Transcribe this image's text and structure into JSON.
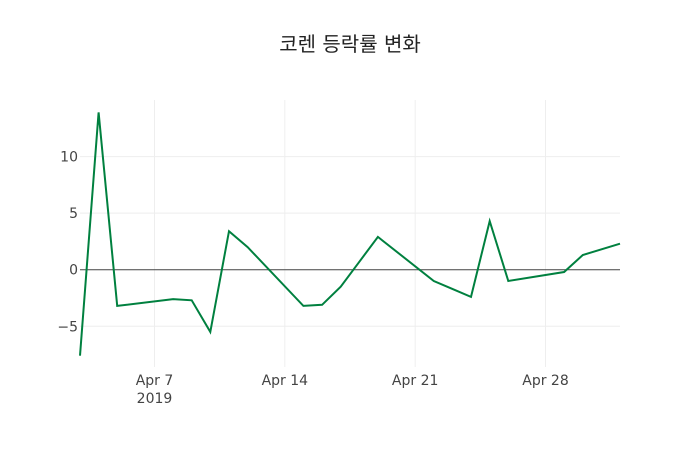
{
  "chart_data": {
    "type": "line",
    "title": "코렌 등락률 변화",
    "xlabel": "",
    "ylabel": "",
    "x": [
      "2019-04-03",
      "2019-04-04",
      "2019-04-05",
      "2019-04-08",
      "2019-04-09",
      "2019-04-10",
      "2019-04-11",
      "2019-04-12",
      "2019-04-15",
      "2019-04-16",
      "2019-04-17",
      "2019-04-18",
      "2019-04-19",
      "2019-04-22",
      "2019-04-23",
      "2019-04-24",
      "2019-04-25",
      "2019-04-26",
      "2019-04-29",
      "2019-04-30",
      "2019-05-02"
    ],
    "series": [
      {
        "name": "등락률",
        "color": "#00803f",
        "values": [
          -7.6,
          13.9,
          -3.2,
          -2.6,
          -2.7,
          -5.5,
          3.4,
          2.0,
          -3.2,
          -3.1,
          -1.5,
          0.7,
          2.9,
          -1.0,
          -1.7,
          -2.4,
          4.3,
          -1.0,
          -0.2,
          1.3,
          2.3
        ]
      }
    ],
    "xlim": [
      "2019-04-03",
      "2019-05-02"
    ],
    "ylim": [
      -8.6,
      15.0
    ],
    "x_ticks": [
      {
        "date": "2019-04-07",
        "label": "Apr 7",
        "sublabel": "2019"
      },
      {
        "date": "2019-04-14",
        "label": "Apr 14",
        "sublabel": ""
      },
      {
        "date": "2019-04-21",
        "label": "Apr 21",
        "sublabel": ""
      },
      {
        "date": "2019-04-28",
        "label": "Apr 28",
        "sublabel": ""
      }
    ],
    "y_ticks": [
      {
        "value": 10,
        "label": "10"
      },
      {
        "value": 5,
        "label": "5"
      },
      {
        "value": 0,
        "label": "0"
      },
      {
        "value": -5,
        "label": "−5"
      }
    ],
    "grid": true,
    "zero_line": true,
    "legend": "none"
  }
}
